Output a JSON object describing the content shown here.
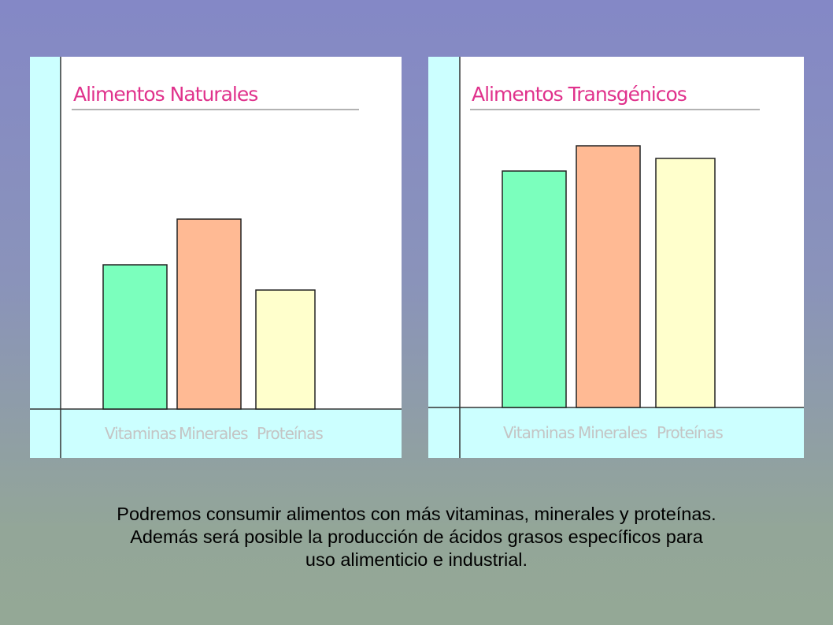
{
  "chart_data": [
    {
      "type": "bar",
      "title": "Alimentos  Naturales",
      "categories": [
        "Vitaminas",
        "Minerales",
        "Proteínas"
      ],
      "values": [
        183,
        241,
        151
      ],
      "colors": [
        "#7bffbd",
        "#ffba94",
        "#ffffcc"
      ],
      "ylim": [
        0,
        400
      ],
      "grid": false
    },
    {
      "type": "bar",
      "title": "Alimentos Transgénicos",
      "categories": [
        "Vitaminas",
        "Minerales",
        "Proteínas"
      ],
      "values": [
        300,
        332,
        316
      ],
      "colors": [
        "#7bffbd",
        "#ffba94",
        "#ffffcc"
      ],
      "ylim": [
        0,
        400
      ],
      "grid": false
    }
  ],
  "caption": [
    "Podremos consumir alimentos con más vitaminas, minerales y proteínas.",
    "Además será posible la producción de ácidos grasos específicos para",
    "uso alimenticio e industrial."
  ],
  "colors": {
    "title": "#e0328c",
    "axis_band": "#ccffff",
    "category_text": "#c4c4c4"
  }
}
